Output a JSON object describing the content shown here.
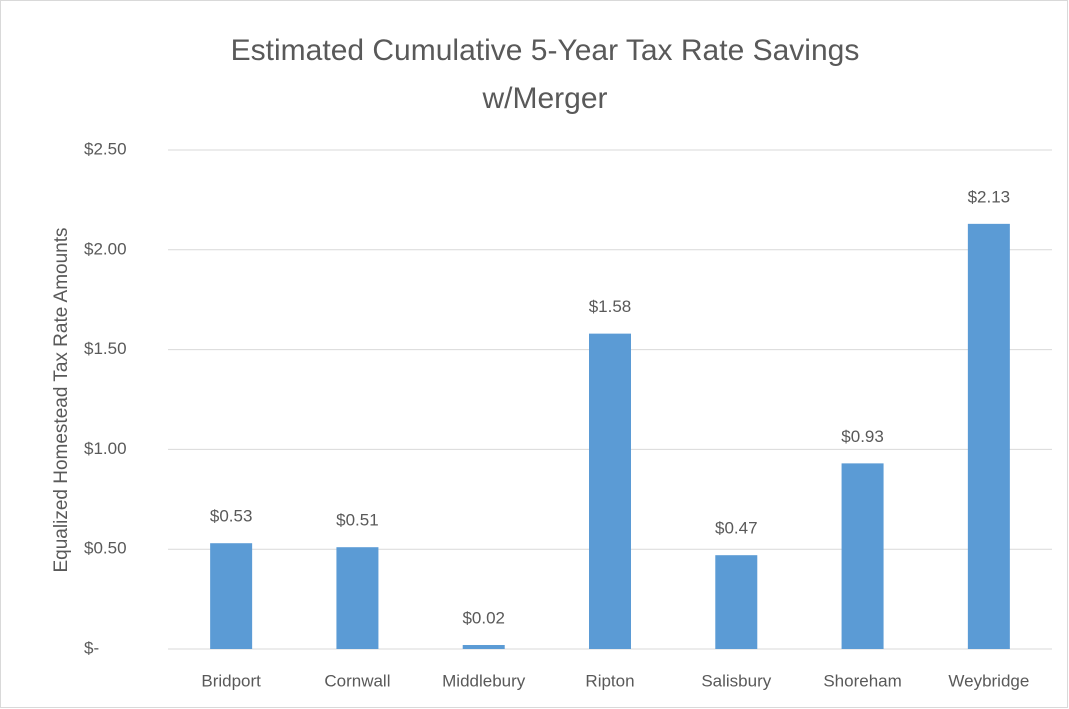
{
  "chart_data": {
    "type": "bar",
    "title": [
      "Estimated Cumulative 5-Year Tax Rate Savings",
      "w/Merger"
    ],
    "y_axis_label": "Equalized Homestead Tax Rate Amounts",
    "categories": [
      "Bridport",
      "Cornwall",
      "Middlebury",
      "Ripton",
      "Salisbury",
      "Shoreham",
      "Weybridge"
    ],
    "values": [
      0.53,
      0.51,
      0.02,
      1.58,
      0.47,
      0.93,
      2.13
    ],
    "value_labels": [
      "$0.53",
      "$0.51",
      "$0.02",
      "$1.58",
      "$0.47",
      "$0.93",
      "$2.13"
    ],
    "color": "#5b9bd5",
    "ylim": [
      0,
      2.5
    ],
    "yticks": [
      {
        "value": 0,
        "label": "$-"
      },
      {
        "value": 0.5,
        "label": "$0.50"
      },
      {
        "value": 1,
        "label": "$1.00"
      },
      {
        "value": 1.5,
        "label": "$1.50"
      },
      {
        "value": 2,
        "label": "$2.00"
      },
      {
        "value": 2.5,
        "label": "$2.50"
      }
    ],
    "grid": true
  }
}
